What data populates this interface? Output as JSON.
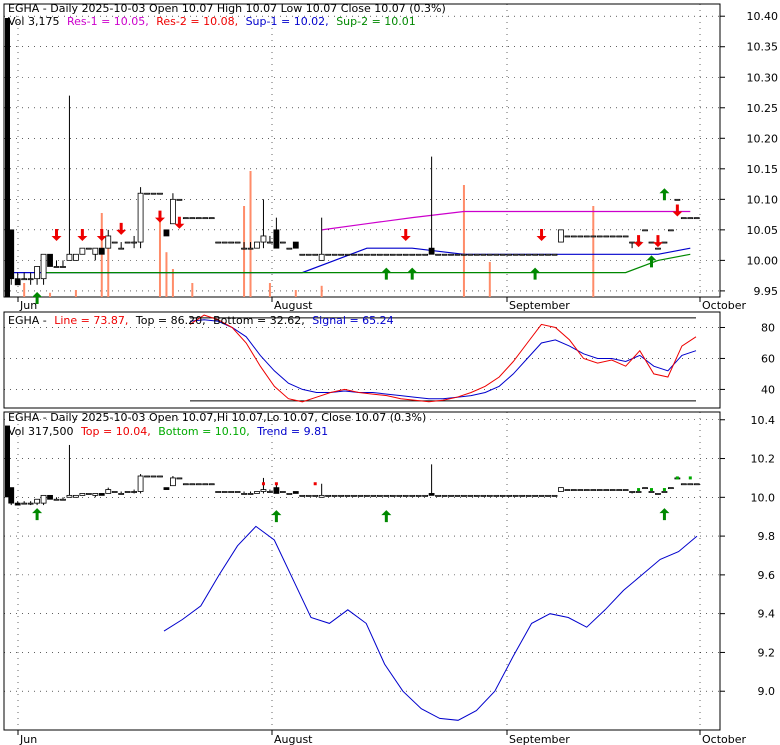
{
  "colors": {
    "frame": "#000000",
    "grid": "#000000",
    "res": "#cc00cc",
    "sup": "#0000cc",
    "sup2": "#008800",
    "up_arrow": "#008800",
    "down_arrow": "#ee0000",
    "volume": "#ff8c69",
    "line": "#ee0000",
    "signal": "#0000cc",
    "trend": "#0000cc",
    "band_top": "#ee0000",
    "band_bottom": "#00aa00"
  },
  "panels": {
    "price": {
      "header": {
        "title": "EGHA - Daily 2025-10-03 Open 10.07  High 10.07  Low 10.07  Close 10.07 (0.3%)",
        "vol": "Vol 3,175",
        "res1": "Res-1 = 10.05,",
        "res2": "Res-2 = 10.08,",
        "sup1": "Sup-1 = 10.02,",
        "sup2": "Sup-2 = 10.01"
      }
    },
    "oscillator": {
      "header": {
        "name": "EGHA -",
        "line": "Line = 73.87,",
        "top": "Top = 86.20,",
        "bottom": "Bottom = 32.62,",
        "signal": "Signal = 65.24"
      }
    },
    "trend": {
      "header": {
        "title": "EGHA - Daily 2025-10-03 Open 10.07,Hi 10.07,Lo 10.07, Close 10.07 (0.3%)",
        "vol": "Vol 317,500",
        "top": "Top = 10.04,",
        "bottom": "Bottom = 10.10,",
        "trend": "Trend = 9.81"
      }
    }
  },
  "chart_data": [
    {
      "type": "candlestick",
      "title": "EGHA - Daily 2025-10-03",
      "x_labels": [
        "Jun",
        "August",
        "September",
        "October"
      ],
      "y_ticks": [
        9.95,
        10.0,
        10.05,
        10.1,
        10.15,
        10.2,
        10.25,
        10.3,
        10.35,
        10.4
      ],
      "ylim": [
        9.94,
        10.42
      ],
      "candles": [
        {
          "o": 10.05,
          "h": 10.05,
          "l": 9.96,
          "c": 9.97
        },
        {
          "o": 9.97,
          "h": 9.98,
          "l": 9.96,
          "c": 9.96
        },
        {
          "o": 9.97,
          "h": 9.98,
          "l": 9.97,
          "c": 9.97
        },
        {
          "o": 9.97,
          "h": 9.98,
          "l": 9.96,
          "c": 9.97
        },
        {
          "o": 9.97,
          "h": 9.99,
          "l": 9.96,
          "c": 9.99
        },
        {
          "o": 9.97,
          "h": 10.01,
          "l": 9.96,
          "c": 10.01
        },
        {
          "o": 10.01,
          "h": 10.01,
          "l": 9.99,
          "c": 9.99
        },
        {
          "o": 9.99,
          "h": 10.0,
          "l": 9.99,
          "c": 9.99
        },
        {
          "o": 9.99,
          "h": 10.0,
          "l": 9.99,
          "c": 9.99
        },
        {
          "o": 10.0,
          "h": 10.27,
          "l": 10.0,
          "c": 10.01
        },
        {
          "o": 10.0,
          "h": 10.01,
          "l": 10.0,
          "c": 10.01
        },
        {
          "o": 10.01,
          "h": 10.02,
          "l": 10.01,
          "c": 10.02
        },
        {
          "o": 10.02,
          "h": 10.02,
          "l": 10.02,
          "c": 10.02
        },
        {
          "o": 10.01,
          "h": 10.02,
          "l": 10.0,
          "c": 10.02
        },
        {
          "o": 10.02,
          "h": 10.02,
          "l": 10.01,
          "c": 10.01
        },
        {
          "o": 10.02,
          "h": 10.05,
          "l": 10.02,
          "c": 10.04
        },
        {
          "o": 10.03,
          "h": 10.03,
          "l": 10.03,
          "c": 10.03
        },
        {
          "o": 10.02,
          "h": 10.03,
          "l": 10.02,
          "c": 10.02
        },
        {
          "o": 10.03,
          "h": 10.03,
          "l": 10.03,
          "c": 10.03
        },
        {
          "o": 10.03,
          "h": 10.04,
          "l": 10.02,
          "c": 10.03
        },
        {
          "o": 10.03,
          "h": 10.12,
          "l": 10.02,
          "c": 10.11
        },
        {
          "o": 10.11,
          "h": 10.11,
          "l": 10.11,
          "c": 10.11
        },
        {
          "o": 10.11,
          "h": 10.11,
          "l": 10.11,
          "c": 10.11
        },
        {
          "o": 10.11,
          "h": 10.11,
          "l": 10.11,
          "c": 10.11
        },
        {
          "o": 10.05,
          "h": 10.05,
          "l": 10.04,
          "c": 10.04
        },
        {
          "o": 10.06,
          "h": 10.11,
          "l": 10.06,
          "c": 10.1
        },
        {
          "o": 10.1,
          "h": 10.1,
          "l": 10.1,
          "c": 10.1
        },
        {
          "o": 10.07,
          "h": 10.07,
          "l": 10.07,
          "c": 10.07
        },
        {
          "o": 10.07,
          "h": 10.07,
          "l": 10.07,
          "c": 10.07
        },
        {
          "o": 10.07,
          "h": 10.07,
          "l": 10.07,
          "c": 10.07
        },
        {
          "o": 10.07,
          "h": 10.07,
          "l": 10.07,
          "c": 10.07
        },
        {
          "o": 10.07,
          "h": 10.07,
          "l": 10.07,
          "c": 10.07
        },
        {
          "o": 10.03,
          "h": 10.03,
          "l": 10.03,
          "c": 10.03
        },
        {
          "o": 10.03,
          "h": 10.03,
          "l": 10.03,
          "c": 10.03
        },
        {
          "o": 10.03,
          "h": 10.03,
          "l": 10.03,
          "c": 10.03
        },
        {
          "o": 10.03,
          "h": 10.03,
          "l": 10.03,
          "c": 10.03
        },
        {
          "o": 10.02,
          "h": 10.03,
          "l": 10.02,
          "c": 10.02
        },
        {
          "o": 10.02,
          "h": 10.03,
          "l": 10.02,
          "c": 10.02
        },
        {
          "o": 10.02,
          "h": 10.03,
          "l": 10.02,
          "c": 10.03
        },
        {
          "o": 10.03,
          "h": 10.1,
          "l": 10.02,
          "c": 10.04
        },
        {
          "o": 10.03,
          "h": 10.04,
          "l": 10.03,
          "c": 10.03
        },
        {
          "o": 10.05,
          "h": 10.07,
          "l": 10.02,
          "c": 10.02
        },
        {
          "o": 10.03,
          "h": 10.03,
          "l": 10.03,
          "c": 10.03
        },
        {
          "o": 10.02,
          "h": 10.02,
          "l": 10.02,
          "c": 10.02
        },
        {
          "o": 10.03,
          "h": 10.03,
          "l": 10.02,
          "c": 10.02
        },
        {
          "o": 10.01,
          "h": 10.01,
          "l": 10.01,
          "c": 10.01
        },
        {
          "o": 10.01,
          "h": 10.01,
          "l": 10.01,
          "c": 10.01
        },
        {
          "o": 10.01,
          "h": 10.01,
          "l": 10.01,
          "c": 10.01
        },
        {
          "o": 10.0,
          "h": 10.07,
          "l": 10.0,
          "c": 10.01
        },
        {
          "o": 10.01,
          "h": 10.01,
          "l": 10.01,
          "c": 10.01
        },
        {
          "o": 10.01,
          "h": 10.01,
          "l": 10.01,
          "c": 10.01
        },
        {
          "o": 10.01,
          "h": 10.01,
          "l": 10.01,
          "c": 10.01
        },
        {
          "o": 10.01,
          "h": 10.01,
          "l": 10.01,
          "c": 10.01
        },
        {
          "o": 10.01,
          "h": 10.01,
          "l": 10.01,
          "c": 10.01
        },
        {
          "o": 10.01,
          "h": 10.01,
          "l": 10.01,
          "c": 10.01
        },
        {
          "o": 10.01,
          "h": 10.01,
          "l": 10.01,
          "c": 10.01
        },
        {
          "o": 10.01,
          "h": 10.01,
          "l": 10.01,
          "c": 10.01
        },
        {
          "o": 10.01,
          "h": 10.01,
          "l": 10.01,
          "c": 10.01
        },
        {
          "o": 10.01,
          "h": 10.01,
          "l": 10.01,
          "c": 10.01
        },
        {
          "o": 10.01,
          "h": 10.01,
          "l": 10.01,
          "c": 10.01
        },
        {
          "o": 10.01,
          "h": 10.01,
          "l": 10.01,
          "c": 10.01
        },
        {
          "o": 10.01,
          "h": 10.01,
          "l": 10.01,
          "c": 10.01
        },
        {
          "o": 10.01,
          "h": 10.01,
          "l": 10.01,
          "c": 10.01
        },
        {
          "o": 10.01,
          "h": 10.01,
          "l": 10.01,
          "c": 10.01
        },
        {
          "o": 10.01,
          "h": 10.01,
          "l": 10.01,
          "c": 10.01
        },
        {
          "o": 10.02,
          "h": 10.17,
          "l": 10.01,
          "c": 10.01
        },
        {
          "o": 10.01,
          "h": 10.01,
          "l": 10.01,
          "c": 10.01
        },
        {
          "o": 10.01,
          "h": 10.01,
          "l": 10.01,
          "c": 10.01
        },
        {
          "o": 10.01,
          "h": 10.01,
          "l": 10.01,
          "c": 10.01
        },
        {
          "o": 10.01,
          "h": 10.01,
          "l": 10.01,
          "c": 10.01
        },
        {
          "o": 10.01,
          "h": 10.01,
          "l": 10.01,
          "c": 10.01
        },
        {
          "o": 10.01,
          "h": 10.01,
          "l": 10.01,
          "c": 10.01
        },
        {
          "o": 10.01,
          "h": 10.01,
          "l": 10.01,
          "c": 10.01
        },
        {
          "o": 10.01,
          "h": 10.01,
          "l": 10.01,
          "c": 10.01
        },
        {
          "o": 10.01,
          "h": 10.01,
          "l": 10.01,
          "c": 10.01
        },
        {
          "o": 10.01,
          "h": 10.01,
          "l": 10.01,
          "c": 10.01
        },
        {
          "o": 10.01,
          "h": 10.01,
          "l": 10.01,
          "c": 10.01
        },
        {
          "o": 10.01,
          "h": 10.01,
          "l": 10.01,
          "c": 10.01
        },
        {
          "o": 10.01,
          "h": 10.01,
          "l": 10.01,
          "c": 10.01
        },
        {
          "o": 10.01,
          "h": 10.01,
          "l": 10.01,
          "c": 10.01
        },
        {
          "o": 10.01,
          "h": 10.01,
          "l": 10.01,
          "c": 10.01
        },
        {
          "o": 10.01,
          "h": 10.01,
          "l": 10.01,
          "c": 10.01
        },
        {
          "o": 10.01,
          "h": 10.01,
          "l": 10.01,
          "c": 10.01
        },
        {
          "o": 10.01,
          "h": 10.01,
          "l": 10.01,
          "c": 10.01
        },
        {
          "o": 10.01,
          "h": 10.01,
          "l": 10.01,
          "c": 10.01
        },
        {
          "o": 10.03,
          "h": 10.05,
          "l": 10.03,
          "c": 10.05
        },
        {
          "o": 10.04,
          "h": 10.04,
          "l": 10.04,
          "c": 10.04
        },
        {
          "o": 10.04,
          "h": 10.04,
          "l": 10.04,
          "c": 10.04
        },
        {
          "o": 10.04,
          "h": 10.04,
          "l": 10.04,
          "c": 10.04
        },
        {
          "o": 10.04,
          "h": 10.04,
          "l": 10.04,
          "c": 10.04
        },
        {
          "o": 10.04,
          "h": 10.04,
          "l": 10.04,
          "c": 10.04
        },
        {
          "o": 10.04,
          "h": 10.04,
          "l": 10.04,
          "c": 10.04
        },
        {
          "o": 10.04,
          "h": 10.04,
          "l": 10.04,
          "c": 10.04
        },
        {
          "o": 10.04,
          "h": 10.04,
          "l": 10.04,
          "c": 10.04
        },
        {
          "o": 10.04,
          "h": 10.04,
          "l": 10.04,
          "c": 10.04
        },
        {
          "o": 10.04,
          "h": 10.04,
          "l": 10.04,
          "c": 10.04
        },
        {
          "o": 10.03,
          "h": 10.03,
          "l": 10.02,
          "c": 10.03
        },
        {
          "o": 10.03,
          "h": 10.03,
          "l": 10.03,
          "c": 10.03
        },
        {
          "o": 10.05,
          "h": 10.05,
          "l": 10.05,
          "c": 10.05
        },
        {
          "o": 10.03,
          "h": 10.03,
          "l": 10.03,
          "c": 10.03
        },
        {
          "o": 10.02,
          "h": 10.02,
          "l": 10.02,
          "c": 10.02
        },
        {
          "o": 10.03,
          "h": 10.03,
          "l": 10.03,
          "c": 10.03
        },
        {
          "o": 10.05,
          "h": 10.05,
          "l": 10.05,
          "c": 10.05
        },
        {
          "o": 10.1,
          "h": 10.1,
          "l": 10.1,
          "c": 10.1
        },
        {
          "o": 10.07,
          "h": 10.07,
          "l": 10.07,
          "c": 10.07
        },
        {
          "o": 10.07,
          "h": 10.07,
          "l": 10.07,
          "c": 10.07
        },
        {
          "o": 10.07,
          "h": 10.07,
          "l": 10.07,
          "c": 10.07
        }
      ],
      "res1_line": [
        [
          48,
          10.05
        ],
        [
          55,
          10.06
        ],
        [
          62,
          10.07
        ],
        [
          70,
          10.08
        ],
        [
          100,
          10.08
        ],
        [
          105,
          10.08
        ]
      ],
      "res2_line": [
        [
          55,
          10.09
        ],
        [
          60,
          10.09
        ],
        [
          104,
          10.09
        ],
        [
          105,
          10.09
        ]
      ],
      "sup1_line": [
        [
          0,
          9.98
        ],
        [
          45,
          9.98
        ],
        [
          50,
          10.0
        ],
        [
          55,
          10.02
        ],
        [
          62,
          10.02
        ],
        [
          70,
          10.01
        ],
        [
          100,
          10.01
        ],
        [
          105,
          10.02
        ]
      ],
      "sup2_line": [
        [
          5,
          9.98
        ],
        [
          95,
          9.98
        ],
        [
          100,
          10.0
        ],
        [
          105,
          10.01
        ]
      ],
      "up_arrows": [
        [
          4,
          9.94
        ],
        [
          58,
          9.98
        ],
        [
          62,
          9.98
        ],
        [
          81,
          9.98
        ],
        [
          99,
          10.0
        ],
        [
          101,
          10.11
        ]
      ],
      "down_arrows": [
        [
          7,
          10.04
        ],
        [
          11,
          10.04
        ],
        [
          14,
          10.04
        ],
        [
          17,
          10.05
        ],
        [
          23,
          10.07
        ],
        [
          26,
          10.06
        ],
        [
          61,
          10.04
        ],
        [
          82,
          10.04
        ],
        [
          97,
          10.03
        ],
        [
          100,
          10.03
        ],
        [
          103,
          10.08
        ]
      ],
      "volume_bars": [
        0.1,
        0.03,
        0.05,
        0.6,
        0.35,
        0.55,
        0.32,
        0.2,
        0.1,
        0.65,
        0.9,
        0.1,
        0.05,
        0.08,
        0.8,
        0.25,
        0.65
      ],
      "volume_positions": [
        2,
        6,
        10,
        14,
        15,
        23,
        24,
        25,
        28,
        36,
        37,
        40,
        44,
        48,
        70,
        74,
        90
      ]
    },
    {
      "type": "line",
      "series": [
        {
          "name": "Line",
          "values": [
            82,
            88,
            85,
            80,
            70,
            55,
            42,
            34,
            32,
            35,
            38,
            40,
            38,
            37,
            36,
            34,
            33,
            32,
            33,
            35,
            38,
            42,
            48,
            58,
            70,
            82,
            80,
            72,
            60,
            57,
            59,
            55,
            65,
            50,
            48,
            68,
            74
          ]
        },
        {
          "name": "Signal",
          "values": [
            84,
            85,
            84,
            80,
            74,
            62,
            52,
            44,
            40,
            38,
            38,
            39,
            38,
            38,
            37,
            36,
            35,
            34,
            34,
            35,
            36,
            38,
            42,
            50,
            60,
            70,
            72,
            68,
            63,
            60,
            60,
            58,
            62,
            55,
            52,
            62,
            65
          ]
        }
      ],
      "top": 86.2,
      "bottom": 32.62,
      "y_ticks": [
        40,
        60,
        80
      ],
      "ylim": [
        28,
        90
      ]
    },
    {
      "type": "line",
      "series": [
        {
          "name": "Trend",
          "values": [
            9.31,
            9.37,
            9.44,
            9.6,
            9.75,
            9.85,
            9.78,
            9.58,
            9.38,
            9.35,
            9.42,
            9.35,
            9.14,
            9.0,
            8.91,
            8.86,
            8.85,
            8.9,
            9.0,
            9.18,
            9.35,
            9.4,
            9.38,
            9.33,
            9.42,
            9.52,
            9.6,
            9.68,
            9.72,
            9.8
          ]
        }
      ],
      "y_ticks": [
        9.0,
        9.2,
        9.4,
        9.6,
        9.8,
        10.0,
        10.2,
        10.4
      ],
      "ylim": [
        8.8,
        10.44
      ],
      "x_labels": [
        "Jun",
        "August",
        "September",
        "October"
      ]
    }
  ]
}
